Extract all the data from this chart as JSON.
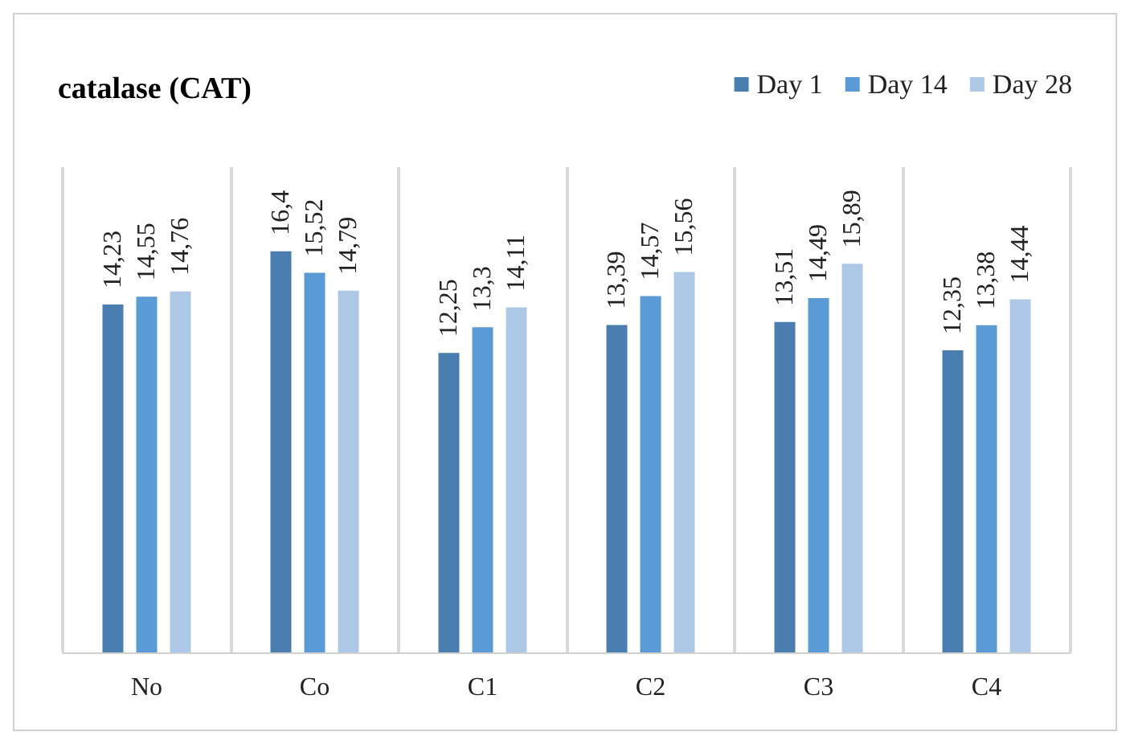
{
  "chart_data": {
    "type": "bar",
    "title": "catalase (CAT)",
    "categories": [
      "No",
      "Co",
      "C1",
      "C2",
      "C3",
      "C4"
    ],
    "series": [
      {
        "name": "Day 1",
        "color": "#4a7eb0",
        "values": [
          14.23,
          16.4,
          12.25,
          13.39,
          13.51,
          12.35
        ],
        "value_labels": [
          "14,23",
          "16,4",
          "12,25",
          "13,39",
          "13,51",
          "12,35"
        ]
      },
      {
        "name": "Day 14",
        "color": "#5b9bd5",
        "values": [
          14.55,
          15.52,
          13.3,
          14.57,
          14.49,
          13.38
        ],
        "value_labels": [
          "14,55",
          "15,52",
          "13,3",
          "14,57",
          "14,49",
          "13,38"
        ]
      },
      {
        "name": "Day 28",
        "color": "#adc7e6",
        "values": [
          14.76,
          14.79,
          14.11,
          15.56,
          15.89,
          14.44
        ],
        "value_labels": [
          "14,76",
          "14,79",
          "14,11",
          "15,56",
          "15,89",
          "14,44"
        ]
      }
    ],
    "grid": "x",
    "legend": "top right"
  }
}
